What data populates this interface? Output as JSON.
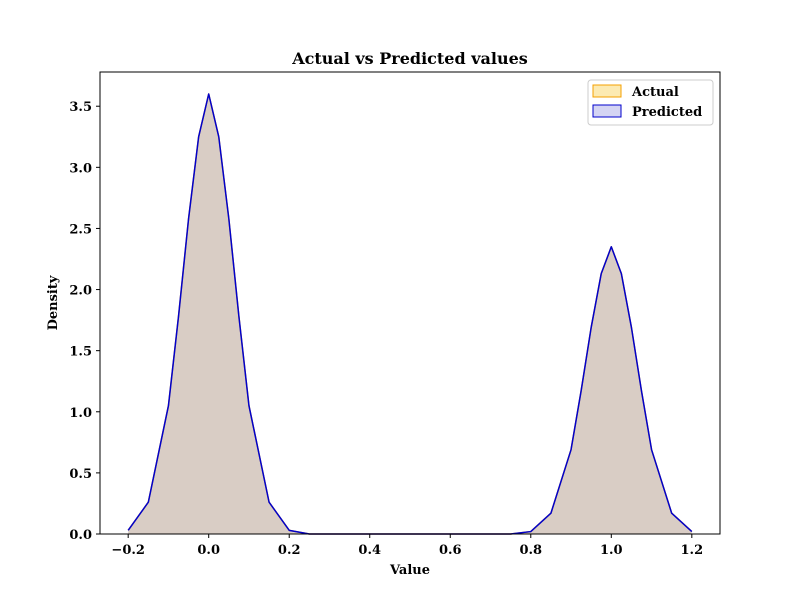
{
  "chart_data": {
    "type": "area",
    "title": "Actual vs Predicted values",
    "xlabel": "Value",
    "ylabel": "Density",
    "xlim": [
      -0.27,
      1.27
    ],
    "ylim": [
      0.0,
      3.78
    ],
    "xticks": [
      -0.2,
      0.0,
      0.2,
      0.4,
      0.6,
      0.8,
      1.0,
      1.2
    ],
    "xtick_labels": [
      "−0.2",
      "0.0",
      "0.2",
      "0.4",
      "0.6",
      "0.8",
      "1.0",
      "1.2"
    ],
    "yticks": [
      0.0,
      0.5,
      1.0,
      1.5,
      2.0,
      2.5,
      3.0,
      3.5
    ],
    "ytick_labels": [
      "0.0",
      "0.5",
      "1.0",
      "1.5",
      "2.0",
      "2.5",
      "3.0",
      "3.5"
    ],
    "grid": false,
    "legend_position": "top-right",
    "series": [
      {
        "name": "Actual",
        "fill_color": "#f5b800",
        "edge_color": "#f5a000",
        "x": [
          -0.2,
          -0.15,
          -0.1,
          -0.075,
          -0.05,
          -0.025,
          0.0,
          0.025,
          0.05,
          0.075,
          0.1,
          0.15,
          0.2,
          0.25,
          0.3,
          0.4,
          0.5,
          0.6,
          0.7,
          0.75,
          0.8,
          0.85,
          0.9,
          0.925,
          0.95,
          0.975,
          1.0,
          1.025,
          1.05,
          1.075,
          1.1,
          1.15,
          1.2
        ],
        "y": [
          0.03,
          0.26,
          1.05,
          1.78,
          2.58,
          3.25,
          3.6,
          3.25,
          2.58,
          1.78,
          1.05,
          0.26,
          0.03,
          0.0,
          0.0,
          0.0,
          0.0,
          0.0,
          0.0,
          0.0,
          0.02,
          0.17,
          0.69,
          1.17,
          1.69,
          2.13,
          2.35,
          2.13,
          1.69,
          1.17,
          0.69,
          0.17,
          0.02
        ]
      },
      {
        "name": "Predicted",
        "fill_color": "#7070d8",
        "edge_color": "#0000cc",
        "x": [
          -0.2,
          -0.15,
          -0.1,
          -0.075,
          -0.05,
          -0.025,
          0.0,
          0.025,
          0.05,
          0.075,
          0.1,
          0.15,
          0.2,
          0.25,
          0.3,
          0.4,
          0.5,
          0.6,
          0.7,
          0.75,
          0.8,
          0.85,
          0.9,
          0.925,
          0.95,
          0.975,
          1.0,
          1.025,
          1.05,
          1.075,
          1.1,
          1.15,
          1.2
        ],
        "y": [
          0.03,
          0.26,
          1.05,
          1.78,
          2.58,
          3.25,
          3.6,
          3.25,
          2.58,
          1.78,
          1.05,
          0.26,
          0.03,
          0.0,
          0.0,
          0.0,
          0.0,
          0.0,
          0.0,
          0.0,
          0.02,
          0.17,
          0.69,
          1.17,
          1.69,
          2.13,
          2.35,
          2.13,
          1.69,
          1.17,
          0.69,
          0.17,
          0.02
        ]
      }
    ]
  }
}
